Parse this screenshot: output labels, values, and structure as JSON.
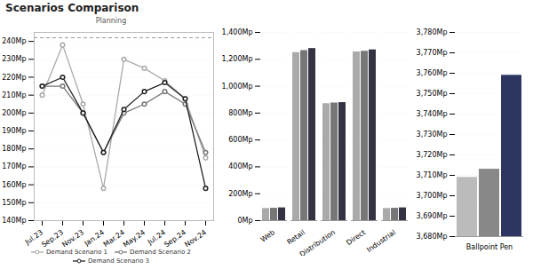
{
  "title": "Scenarios Comparison",
  "chart_data": [
    {
      "type": "line",
      "title": "Planning",
      "categories": [
        "Jul.23",
        "Sep.23",
        "Nov.23",
        "Jan.24",
        "Mar.24",
        "May.24",
        "Jul.24",
        "Sep.24",
        "Nov.24"
      ],
      "series": [
        {
          "name": "Demand Scenario 1",
          "color": "#AAAAAA",
          "values": [
            210,
            238,
            205,
            158,
            230,
            225,
            218,
            208,
            175
          ]
        },
        {
          "name": "Demand Scenario 2",
          "color": "#777777",
          "values": [
            215,
            215,
            200,
            178,
            200,
            205,
            212,
            205,
            178
          ]
        },
        {
          "name": "Demand Scenario 3",
          "color": "#222222",
          "values": [
            215,
            220,
            200,
            178,
            202,
            212,
            217,
            208,
            158
          ]
        }
      ],
      "ylim": [
        140,
        245
      ],
      "yticks": [
        {
          "value": 140,
          "label": "140Mp"
        },
        {
          "value": 150,
          "label": "150Mp"
        },
        {
          "value": 160,
          "label": "160Mp"
        },
        {
          "value": 170,
          "label": "170Mp"
        },
        {
          "value": 180,
          "label": "180Mp"
        },
        {
          "value": 190,
          "label": "190Mp"
        },
        {
          "value": 200,
          "label": "200Mp"
        },
        {
          "value": 210,
          "label": "210Mp"
        },
        {
          "value": 220,
          "label": "220Mp"
        },
        {
          "value": 230,
          "label": "230Mp"
        },
        {
          "value": 240,
          "label": "240Mp"
        }
      ],
      "grid": true,
      "legend": "bottom",
      "marker": "o",
      "line_style": "solid",
      "reference_lines": [
        {
          "y": 242,
          "line_style": "dashed"
        }
      ]
    },
    {
      "type": "bar",
      "categories": [
        "Web",
        "Retail",
        "Distribution",
        "Direct",
        "Industrial"
      ],
      "series": [
        {
          "name": "Demand Scenario 1",
          "color": "#AAAAAA",
          "values": [
            90,
            1250,
            870,
            1255,
            90
          ]
        },
        {
          "name": "Demand Scenario 2",
          "color": "#777777",
          "values": [
            92,
            1265,
            875,
            1260,
            92
          ]
        },
        {
          "name": "Demand Scenario 3",
          "color": "#333344",
          "values": [
            95,
            1280,
            878,
            1270,
            95
          ]
        }
      ],
      "ylim": [
        0,
        1400
      ],
      "yticks": [
        {
          "value": 0,
          "label": "0Mp"
        },
        {
          "value": 200,
          "label": "200Mp"
        },
        {
          "value": 400,
          "label": "400Mp"
        },
        {
          "value": 600,
          "label": "600Mp"
        },
        {
          "value": 800,
          "label": "800Mp"
        },
        {
          "value": 1000,
          "label": "1,000Mp"
        },
        {
          "value": 1200,
          "label": "1,200Mp"
        },
        {
          "value": 1400,
          "label": "1,400Mp"
        }
      ],
      "grid": true
    },
    {
      "type": "bar",
      "categories": [
        "Ballpoint Pen"
      ],
      "series": [
        {
          "name": "Demand Scenario 1",
          "color": "#BBBBBB",
          "values": [
            3709
          ]
        },
        {
          "name": "Demand Scenario 2",
          "color": "#888888",
          "values": [
            3713
          ]
        },
        {
          "name": "Demand Scenario 3",
          "color": "#2d3561",
          "values": [
            3759
          ]
        }
      ],
      "ylim": [
        3680,
        3780
      ],
      "yticks": [
        {
          "value": 3680,
          "label": "3,680Mp"
        },
        {
          "value": 3690,
          "label": "3,690Mp"
        },
        {
          "value": 3700,
          "label": "3,700Mp"
        },
        {
          "value": 3710,
          "label": "3,710Mp"
        },
        {
          "value": 3720,
          "label": "3,720Mp"
        },
        {
          "value": 3730,
          "label": "3,730Mp"
        },
        {
          "value": 3740,
          "label": "3,740Mp"
        },
        {
          "value": 3750,
          "label": "3,750Mp"
        },
        {
          "value": 3760,
          "label": "3,760Mp"
        },
        {
          "value": 3770,
          "label": "3,770Mp"
        },
        {
          "value": 3780,
          "label": "3,780Mp"
        }
      ],
      "grid": true
    }
  ]
}
